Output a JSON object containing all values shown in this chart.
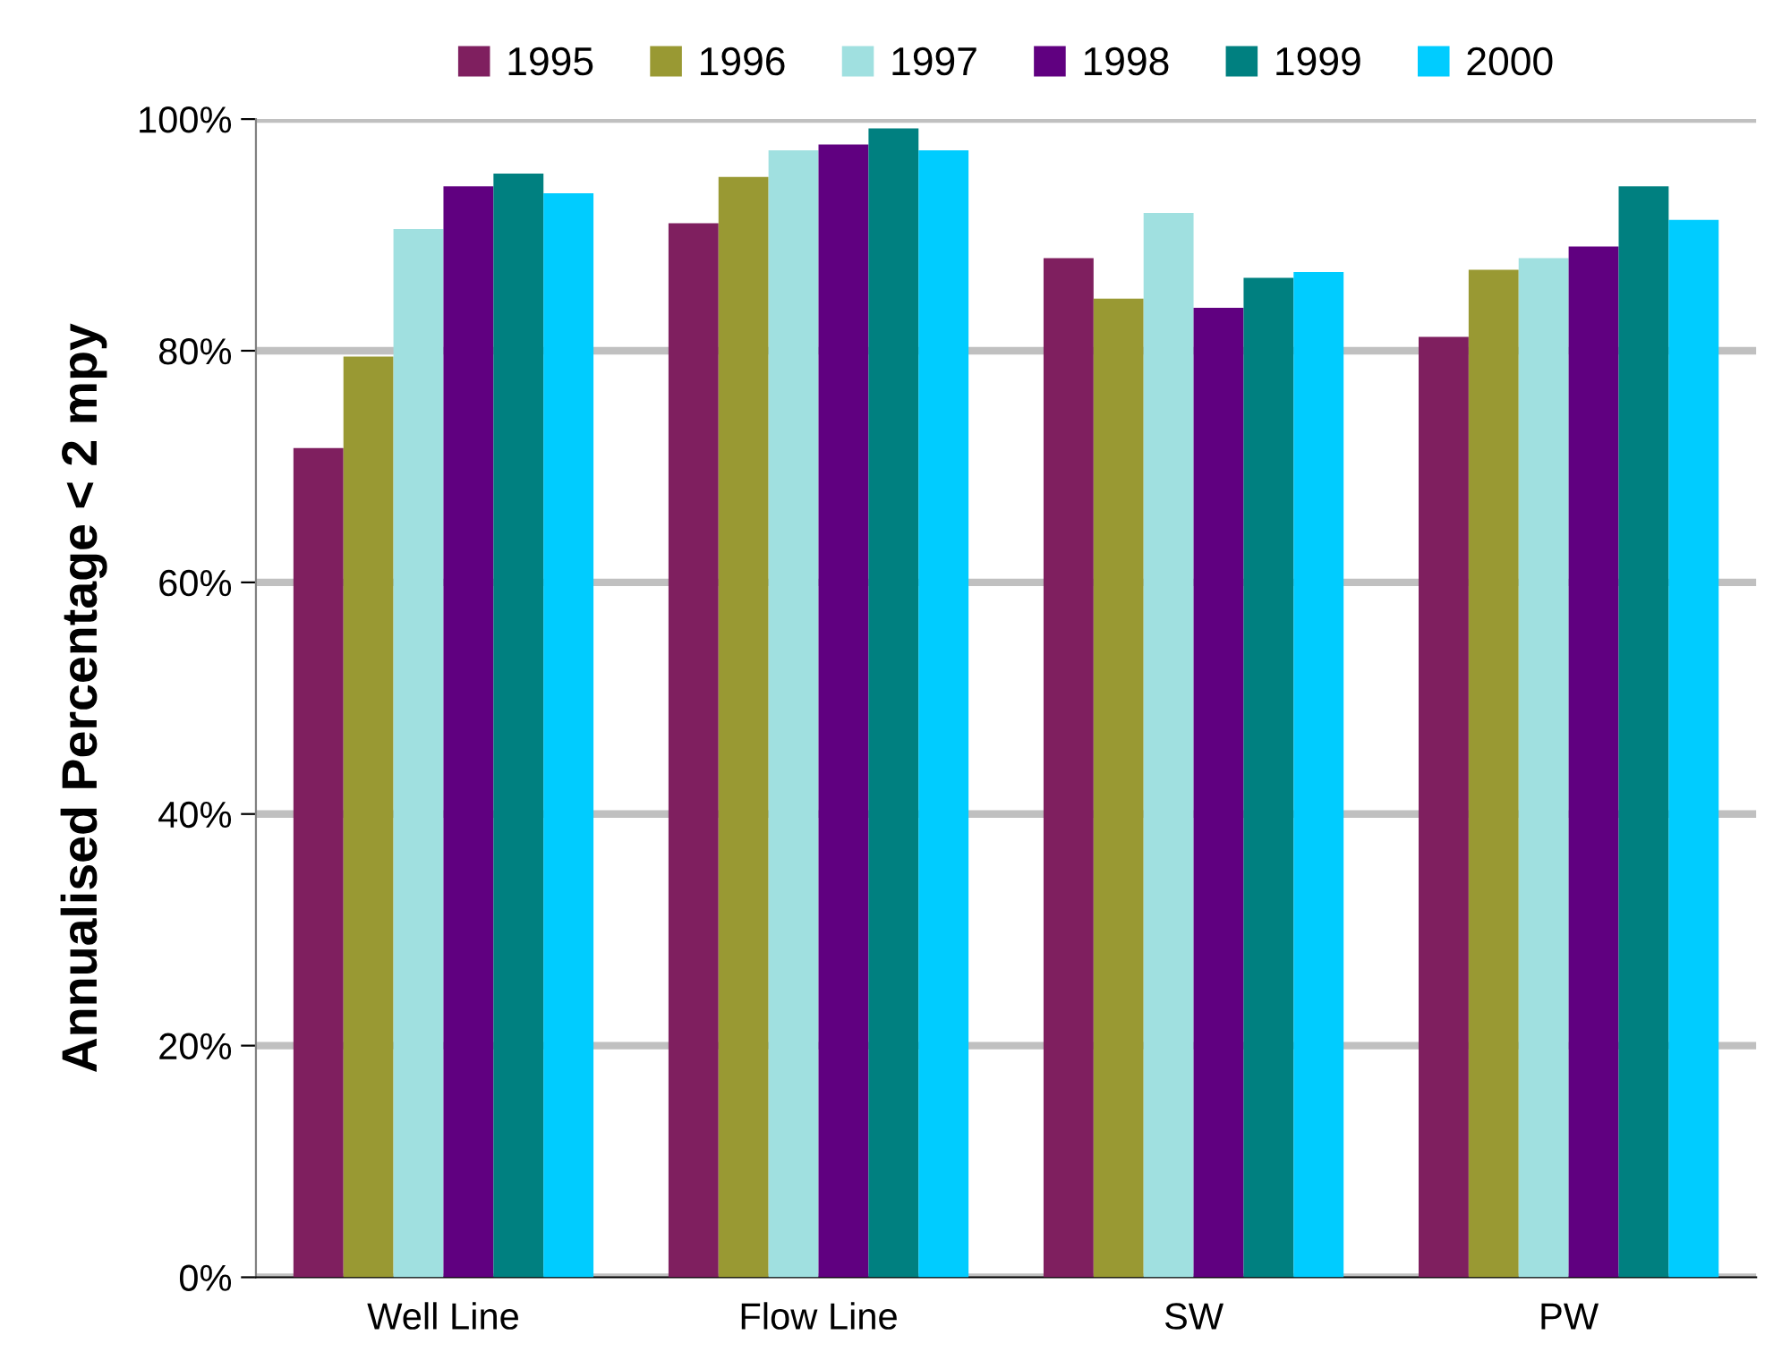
{
  "chart_data": {
    "type": "bar",
    "ylabel": "Annualised Percentage < 2 mpy",
    "categories": [
      "Well Line",
      "Flow Line",
      "SW",
      "PW"
    ],
    "series": [
      {
        "name": "1995",
        "color": "#7f1f5f",
        "values": [
          71.6,
          91.0,
          88.0,
          81.2
        ]
      },
      {
        "name": "1996",
        "color": "#999933",
        "values": [
          79.5,
          95.0,
          84.5,
          87.0
        ]
      },
      {
        "name": "1997",
        "color": "#a0e0e0",
        "values": [
          90.5,
          97.3,
          91.9,
          88.0
        ]
      },
      {
        "name": "1998",
        "color": "#600080",
        "values": [
          94.2,
          97.8,
          83.7,
          89.0
        ]
      },
      {
        "name": "1999",
        "color": "#008080",
        "values": [
          95.3,
          99.2,
          86.3,
          94.2
        ]
      },
      {
        "name": "2000",
        "color": "#00ccff",
        "values": [
          93.6,
          97.3,
          86.8,
          91.3
        ]
      }
    ],
    "ylim": [
      0,
      100
    ],
    "yticks": [
      {
        "value": 0,
        "label": "0%"
      },
      {
        "value": 20,
        "label": "20%"
      },
      {
        "value": 40,
        "label": "40%"
      },
      {
        "value": 60,
        "label": "60%"
      },
      {
        "value": 80,
        "label": "80%"
      },
      {
        "value": 100,
        "label": "100%"
      }
    ],
    "grid": "y",
    "legend": "top"
  }
}
